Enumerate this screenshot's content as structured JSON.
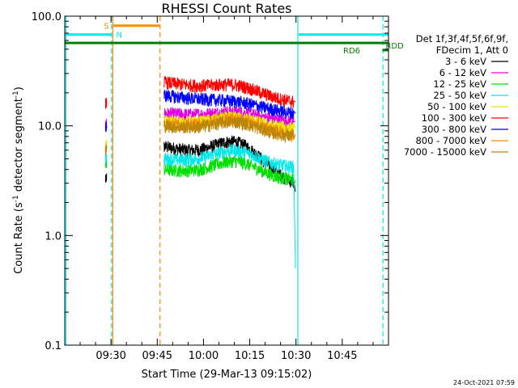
{
  "chart_data": {
    "type": "line",
    "title": "RHESSI Count Rates",
    "xlabel": "Start Time (29-Mar-13 09:15:02)",
    "ylabel": {
      "main": "Count Rate (s",
      "sup1": "-1",
      "mid": " detector segment",
      "sup2": "-1",
      "end": ")"
    },
    "y_scale": "log",
    "ylim": [
      0.1,
      100.0
    ],
    "xlim_minutes": [
      0,
      105
    ],
    "x_ticks": [
      {
        "label": "09:30",
        "t": 15
      },
      {
        "label": "09:45",
        "t": 30
      },
      {
        "label": "10:00",
        "t": 45
      },
      {
        "label": "10:15",
        "t": 60
      },
      {
        "label": "10:30",
        "t": 75
      },
      {
        "label": "10:45",
        "t": 90
      }
    ],
    "y_ticks": [
      {
        "label": "100.0",
        "v": 100
      },
      {
        "label": "10.0",
        "v": 10
      },
      {
        "label": "1.0",
        "v": 1
      },
      {
        "label": "0.1",
        "v": 0.1
      }
    ],
    "legend": {
      "placement": "right",
      "header": [
        "Det 1f,3f,4f,5f,6f,9f,",
        "FDecim 1, Att 0"
      ]
    },
    "series": [
      {
        "name": "3 - 6 keV",
        "color": "#000000",
        "pre": 3.2,
        "pre_end": 3.4,
        "start": 6.5,
        "bump": 7.3,
        "end": 3.0,
        "drop": 2.5
      },
      {
        "name": "6 - 12 keV",
        "color": "#e000e0",
        "pre": 10.0,
        "pre_end": 10.5,
        "start": 13.0,
        "bump": 13.5,
        "end": 11.0,
        "drop": 11.0
      },
      {
        "name": "12 - 25 keV",
        "color": "#00e000",
        "pre": 4.4,
        "pre_end": 4.6,
        "start": 4.0,
        "bump": 4.8,
        "end": 3.2,
        "drop": 3.2
      },
      {
        "name": "25 - 50 keV",
        "color": "#00e8e8",
        "pre": 5.0,
        "pre_end": 5.2,
        "start": 5.0,
        "bump": 6.0,
        "end": 4.2,
        "drop": 0.5
      },
      {
        "name": "50 - 100 keV",
        "color": "#e8e800",
        "pre": 6.5,
        "pre_end": 6.7,
        "start": 11.0,
        "bump": 12.0,
        "end": 9.5,
        "drop": 9.5
      },
      {
        "name": "100 - 300 keV",
        "color": "#ff0000",
        "pre": 16.0,
        "pre_end": 16.5,
        "start": 25.0,
        "bump": 24.0,
        "end": 16.5,
        "drop": 16.5
      },
      {
        "name": "300 - 800 keV",
        "color": "#0000ff",
        "pre": 9.5,
        "pre_end": 10.0,
        "start": 19.0,
        "bump": 17.0,
        "end": 13.0,
        "drop": 13.0
      },
      {
        "name": "800 - 7000 keV",
        "color": "#ff8c00",
        "pre": 6.0,
        "pre_end": 6.3,
        "start": 10.5,
        "bump": 11.5,
        "end": 8.5,
        "drop": 8.5
      },
      {
        "name": "7000 - 15000 keV",
        "color": "#b8860b",
        "pre": 6.0,
        "pre_end": 6.2,
        "start": 10.0,
        "bump": 11.0,
        "end": 8.0,
        "drop": 8.0
      }
    ],
    "data_segments_minutes": {
      "pre": [
        13.2,
        13.6
      ],
      "main": [
        32.2,
        74.3
      ],
      "tail": [
        74.3,
        74.8
      ]
    },
    "flag_bars": [
      {
        "label": "S",
        "color": "#ff8c00",
        "t0": 15.8,
        "t1": 30.7,
        "y": 82.0
      },
      {
        "label": "N",
        "color": "#00e8e8",
        "t0": 0,
        "t1": 15.1,
        "y": 68.0,
        "t2": 75.8,
        "t3": 105,
        "y_right": 68.0
      },
      {
        "label": "RD6",
        "color": "#008000",
        "t0": 0,
        "t1": 105,
        "y": 57.0
      },
      {
        "label": "RDD",
        "color": "#008000",
        "t0": 103.0,
        "t1": 105,
        "y": 49.0
      }
    ],
    "vertical_lines": [
      {
        "t": 0.4,
        "color": "#00e8e8",
        "style": "solid"
      },
      {
        "t": 15.2,
        "color": "#00e8e8",
        "style": "dashed"
      },
      {
        "t": 15.6,
        "color": "#ff8c00",
        "style": "solid"
      },
      {
        "t": 30.9,
        "color": "#ff8c00",
        "style": "dashed"
      },
      {
        "t": 75.6,
        "color": "#00e8e8",
        "style": "solid"
      },
      {
        "t": 103.2,
        "color": "#00e8e8",
        "style": "dashed"
      }
    ],
    "footer_date": "24-Oct-2021 07:59"
  }
}
